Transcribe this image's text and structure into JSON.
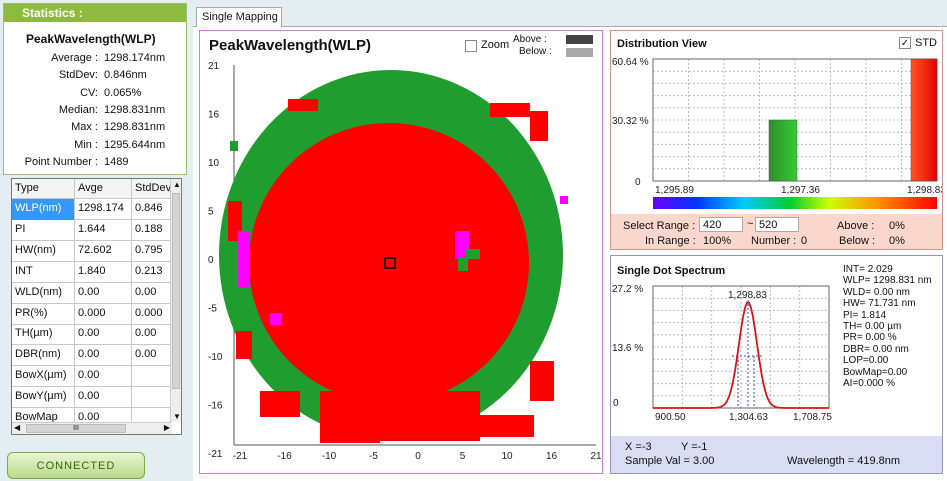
{
  "statistics": {
    "header": "Statistics :",
    "title": "PeakWavelength(WLP)",
    "rows": [
      {
        "label": "Average :",
        "value": "1298.174nm"
      },
      {
        "label": "StdDev:",
        "value": "0.846nm"
      },
      {
        "label": "CV:",
        "value": "0.065%"
      },
      {
        "label": "Median:",
        "value": "1298.831nm"
      },
      {
        "label": "Max :",
        "value": "1298.831nm"
      },
      {
        "label": "Min :",
        "value": "1295.644nm"
      },
      {
        "label": "Point Number :",
        "value": "1489"
      }
    ]
  },
  "type_table": {
    "headers": [
      "Type",
      "Avge",
      "StdDev"
    ],
    "rows": [
      [
        "WLP(nm)",
        "1298.174",
        "0.846"
      ],
      [
        "PI",
        "1.644",
        "0.188"
      ],
      [
        "HW(nm)",
        "72.602",
        "0.795"
      ],
      [
        "INT",
        "1.840",
        "0.213"
      ],
      [
        "WLD(nm)",
        "0.00",
        "0.00"
      ],
      [
        "PR(%)",
        "0.000",
        "0.000"
      ],
      [
        "TH(µm)",
        "0.00",
        "0.00"
      ],
      [
        "DBR(nm)",
        "0.00",
        "0.00"
      ],
      [
        "BowX(µm)",
        "0.00",
        ""
      ],
      [
        "BowY(µm)",
        "0.00",
        ""
      ],
      [
        "BowMap",
        "0.00",
        ""
      ]
    ],
    "hscroll_label": "III"
  },
  "status": {
    "connected_label": "CONNECTED"
  },
  "tab": {
    "label": "Single Mapping"
  },
  "map": {
    "title": "PeakWavelength(WLP)",
    "zoom_label": "Zoom",
    "above_label": "Above :",
    "below_label": "Below :",
    "x_ticks": [
      "-21",
      "-16",
      "-10",
      "-5",
      "0",
      "5",
      "10",
      "16",
      "21"
    ],
    "y_ticks": [
      "21",
      "16",
      "10",
      "5",
      "0",
      "-5",
      "-10",
      "-16",
      "-21"
    ],
    "colors": {
      "red": "#ff0000",
      "green": "#1f9e2f",
      "magenta": "#ff00ff",
      "above": "#444444",
      "below": "#aaaaaa"
    }
  },
  "distribution": {
    "title": "Distribution View",
    "std_label": "STD",
    "y_ticks": [
      "60.64 %",
      "30.32 %",
      "0"
    ],
    "x_ticks": [
      "1,295.89",
      "1,297.36",
      "1,298.83"
    ],
    "bars": [
      {
        "value_pct": 30.32,
        "color": "green"
      },
      {
        "value_pct": 60.64,
        "color": "red"
      }
    ],
    "select_range_label": "Select Range :",
    "range_from": "420",
    "range_sep": "~",
    "range_to": "520",
    "above_label": "Above :",
    "above_value": "0%",
    "in_range_label": "In Range :",
    "in_range_value": "100%",
    "number_label": "Number :",
    "number_value": "0",
    "below_label": "Below :",
    "below_value": "0%"
  },
  "spectrum": {
    "title": "Single Dot Spectrum",
    "y_ticks": [
      "27.2 %",
      "13.6 %",
      "0"
    ],
    "x_ticks": [
      "900.50",
      "1,304.63",
      "1,708.75"
    ],
    "peak_label": "1,298.83",
    "info": [
      "INT= 2.029",
      "WLP= 1298.831 nm",
      "WLD= 0.00 nm",
      "HW= 71.731 nm",
      "PI= 1.814",
      "TH= 0.00 µm",
      "PR= 0.00 %",
      "DBR= 0.00 nm",
      "LOP=0.00",
      "BowMap=0.00",
      "AI=0.000 %"
    ],
    "x_readout": "X =-3",
    "y_readout": "Y =-1",
    "sample_val": "Sample Val = 3.00",
    "wavelength": "Wavelength = 419.8nm"
  }
}
